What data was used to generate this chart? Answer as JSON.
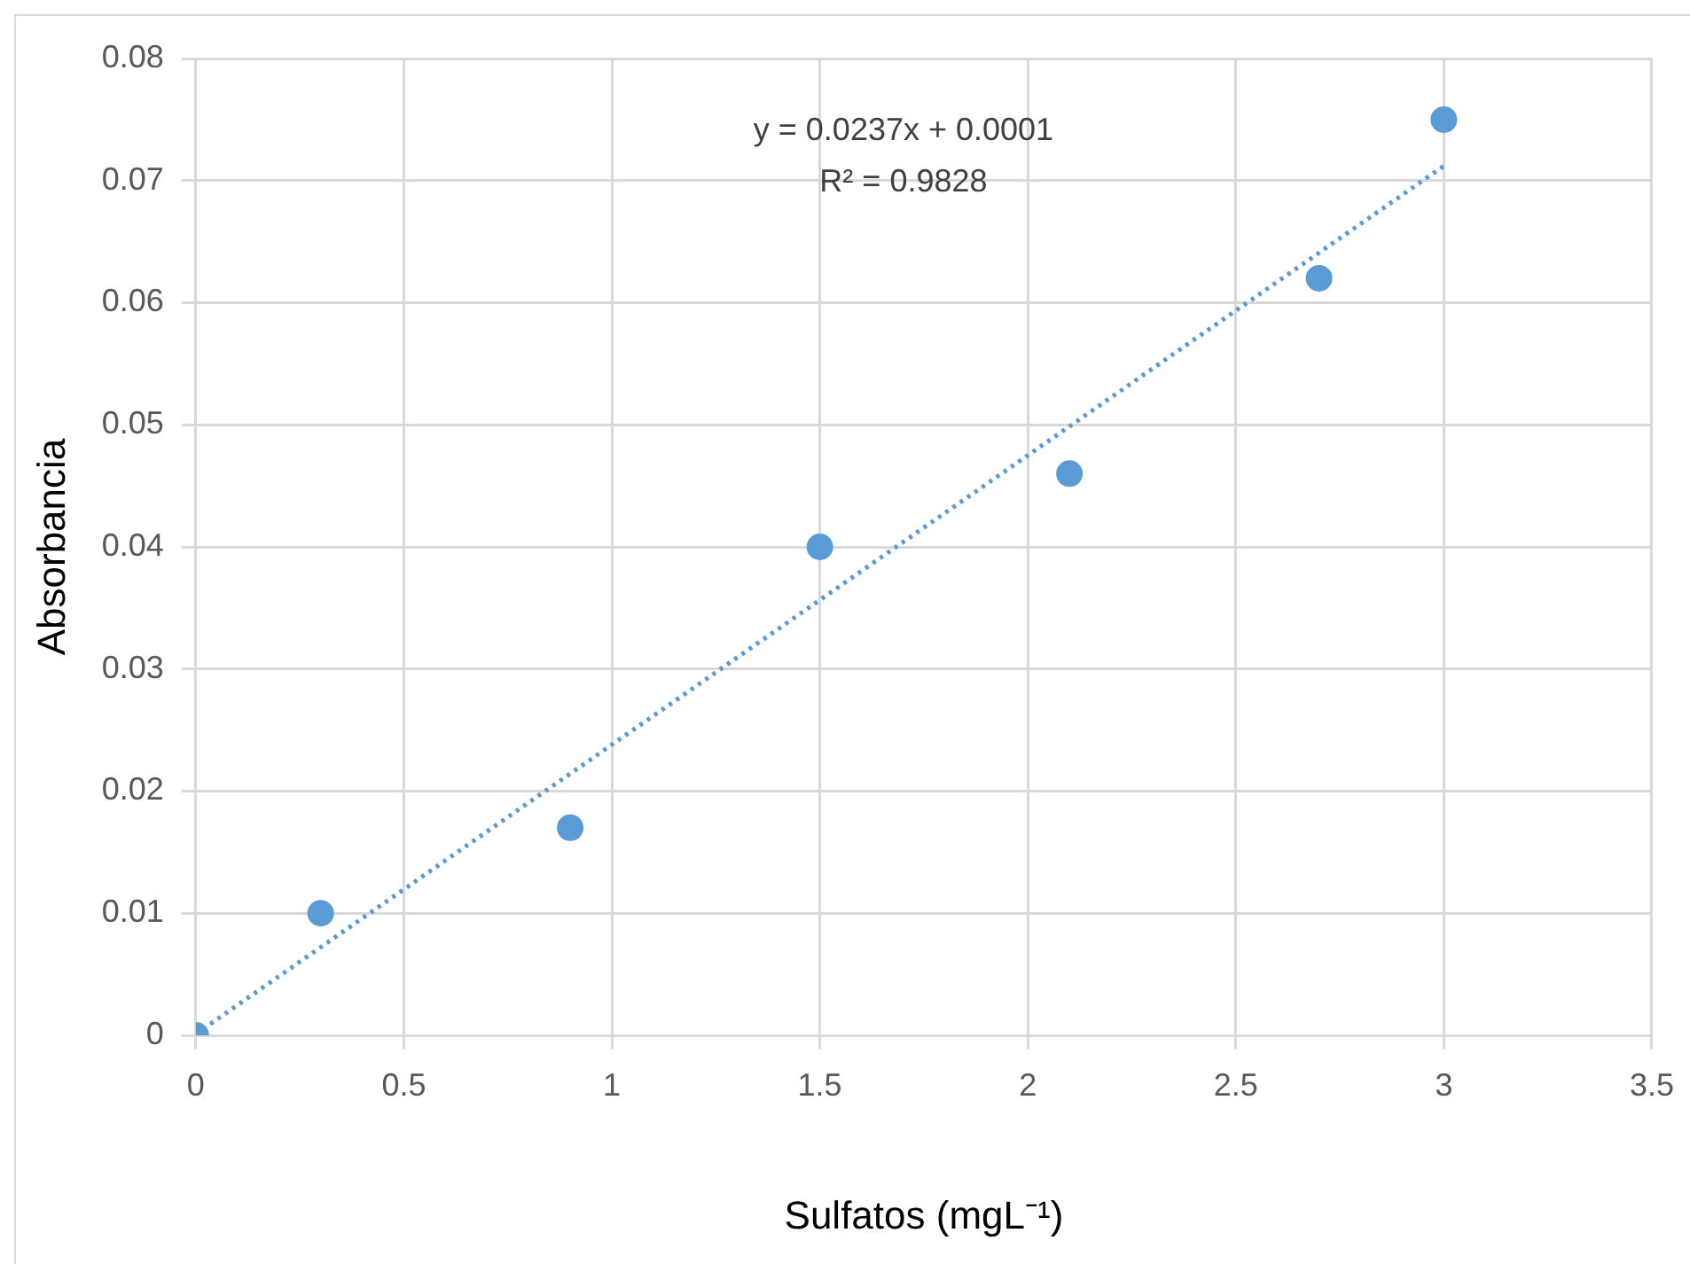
{
  "chart_data": {
    "type": "scatter",
    "xlabel": "Sulfatos (mgL⁻¹)",
    "ylabel": "Absorbancia",
    "x": [
      0,
      0.3,
      0.9,
      1.5,
      2.1,
      2.7,
      3
    ],
    "series": [
      {
        "color": "#5b9bd5",
        "marker": "circle",
        "values": [
          0,
          0.01,
          0.017,
          0.04,
          0.046,
          0.062,
          0.075
        ]
      },
      {
        "type": "line",
        "color": "#5b9bd5",
        "marker": "none",
        "line_style": "dotted",
        "x": [
          0,
          3
        ],
        "values": [
          0.0001,
          0.0712
        ]
      }
    ],
    "xlim": [
      0,
      3.5
    ],
    "xticks": [
      0,
      0.5,
      1,
      1.5,
      2,
      2.5,
      3,
      3.5
    ],
    "ylim": [
      0,
      0.08
    ],
    "yticks": [
      0,
      0.01,
      0.02,
      0.03,
      0.04,
      0.05,
      0.06,
      0.07,
      0.08
    ],
    "grid": true,
    "legend": false,
    "annotations": [
      "y = 0.0237x + 0.0001",
      "R² = 0.9828"
    ]
  }
}
